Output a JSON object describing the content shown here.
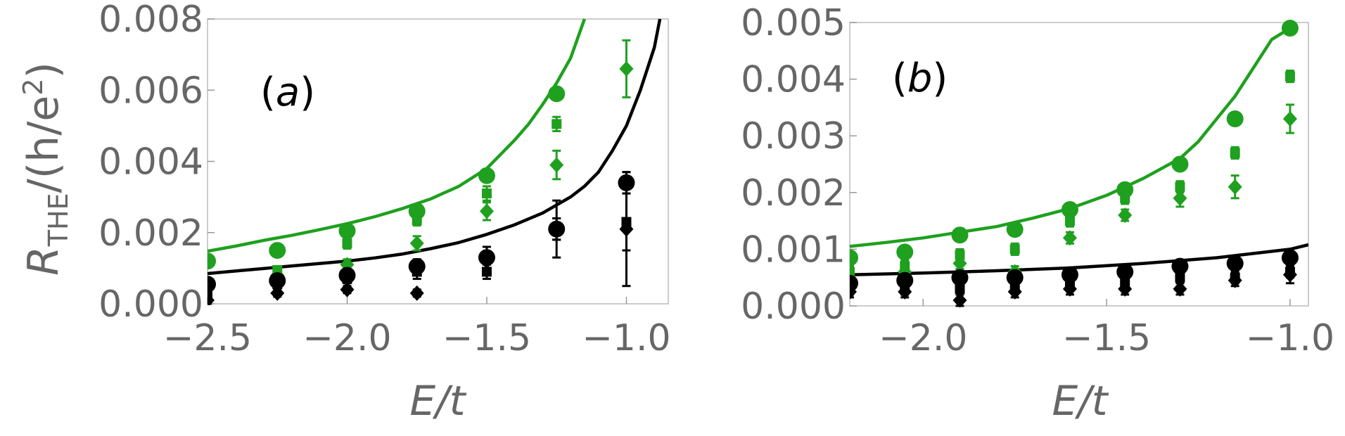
{
  "ylabel": {
    "main": "R",
    "sub": "THE",
    "rest": "/(h/e",
    "sup": "2",
    "close": ")"
  },
  "colors": {
    "green": "#1fa01f",
    "black": "#000000"
  },
  "chart_data": [
    {
      "type": "scatter",
      "panel_label": {
        "open": "(",
        "letter": "a",
        "close": ")"
      },
      "xlabel": "E/t",
      "xlim": [
        -2.5,
        -0.85
      ],
      "ylim": [
        0,
        0.008
      ],
      "xticks": [
        -2.5,
        -2.0,
        -1.5,
        -1.0
      ],
      "xtick_labels": [
        "−2.5",
        "−2.0",
        "−1.5",
        "−1.0"
      ],
      "yticks": [
        0,
        0.002,
        0.004,
        0.006,
        0.008
      ],
      "ytick_labels": [
        "0.000",
        "0.002",
        "0.004",
        "0.006",
        "0.008"
      ],
      "lines": [
        {
          "color": "green",
          "x": [
            -2.5,
            -2.4,
            -2.3,
            -2.2,
            -2.1,
            -2.0,
            -1.9,
            -1.8,
            -1.7,
            -1.6,
            -1.5,
            -1.45,
            -1.4,
            -1.35,
            -1.3,
            -1.25,
            -1.2,
            -1.15
          ],
          "y": [
            0.00148,
            0.00162,
            0.00178,
            0.00192,
            0.00208,
            0.00225,
            0.00245,
            0.00268,
            0.00295,
            0.0033,
            0.0038,
            0.0042,
            0.0046,
            0.00505,
            0.0056,
            0.0062,
            0.0069,
            0.008
          ]
        },
        {
          "color": "black",
          "x": [
            -2.5,
            -2.4,
            -2.3,
            -2.2,
            -2.1,
            -2.0,
            -1.9,
            -1.8,
            -1.7,
            -1.6,
            -1.5,
            -1.4,
            -1.3,
            -1.2,
            -1.15,
            -1.1,
            -1.05,
            -1.0,
            -0.95,
            -0.9,
            -0.88
          ],
          "y": [
            0.00085,
            0.00092,
            0.00099,
            0.00106,
            0.00113,
            0.0012,
            0.00129,
            0.0014,
            0.00155,
            0.00172,
            0.00195,
            0.00222,
            0.00255,
            0.003,
            0.0033,
            0.0037,
            0.0043,
            0.005,
            0.006,
            0.0072,
            0.008
          ]
        }
      ],
      "series": [
        {
          "color": "green",
          "marker": "circle",
          "x": [
            -2.5,
            -2.25,
            -2.0,
            -1.75,
            -1.5,
            -1.25
          ],
          "y": [
            0.0012,
            0.0015,
            0.00205,
            0.0026,
            0.0036,
            0.0059
          ],
          "err": [
            0,
            0,
            0,
            0,
            0,
            0
          ]
        },
        {
          "color": "green",
          "marker": "square",
          "x": [
            -2.5,
            -2.25,
            -2.0,
            -1.75,
            -1.5,
            -1.25
          ],
          "y": [
            0.0006,
            0.00095,
            0.0017,
            0.00235,
            0.0031,
            0.00505
          ],
          "err": [
            0.0001,
            0.0001,
            0.00015,
            0.00015,
            0.0002,
            0.0002
          ]
        },
        {
          "color": "green",
          "marker": "diamond",
          "x": [
            -2.5,
            -2.25,
            -2.0,
            -1.75,
            -1.5,
            -1.25,
            -1.0
          ],
          "y": [
            0.0005,
            0.0008,
            0.0011,
            0.0017,
            0.0026,
            0.0039,
            0.0066
          ],
          "err": [
            0.0001,
            0.0001,
            0.00015,
            0.0002,
            0.00025,
            0.0004,
            0.0008
          ]
        },
        {
          "color": "black",
          "marker": "circle",
          "x": [
            -2.5,
            -2.25,
            -2.0,
            -1.75,
            -1.5,
            -1.25,
            -1.0
          ],
          "y": [
            0.00055,
            0.00065,
            0.0008,
            0.00105,
            0.0013,
            0.0021,
            0.0034
          ],
          "err": [
            0.0001,
            0.0001,
            0.00015,
            0.0002,
            0.0003,
            0.0003,
            0.0003
          ]
        },
        {
          "color": "black",
          "marker": "square",
          "x": [
            -2.5,
            -2.25,
            -2.0,
            -1.75,
            -1.5,
            -1.25,
            -1.0
          ],
          "y": [
            0.00025,
            0.00055,
            0.0007,
            0.0009,
            0.0009,
            0.0021,
            0.0023
          ],
          "err": [
            0.0001,
            0.0001,
            0.00012,
            0.0002,
            0.0002,
            0.0003,
            0.0008
          ]
        },
        {
          "color": "black",
          "marker": "diamond",
          "x": [
            -2.5,
            -2.25,
            -2.0,
            -1.75,
            -1.5,
            -1.25,
            -1.0
          ],
          "y": [
            0.0001,
            0.0003,
            0.0004,
            0.0003,
            0.0012,
            0.0021,
            0.0021
          ],
          "err": [
            0.0001,
            0.0001,
            0.0001,
            0.0001,
            0.0002,
            0.0008,
            0.0016
          ]
        }
      ]
    },
    {
      "type": "scatter",
      "panel_label": {
        "open": "(",
        "letter": "b",
        "close": ")"
      },
      "xlabel": "E/t",
      "xlim": [
        -2.2,
        -0.95
      ],
      "ylim": [
        0,
        0.005
      ],
      "xticks": [
        -2.0,
        -1.5,
        -1.0
      ],
      "xtick_labels": [
        "−2.0",
        "−1.5",
        "−1.0"
      ],
      "yticks": [
        0,
        0.001,
        0.002,
        0.003,
        0.004,
        0.005
      ],
      "ytick_labels": [
        "0.000",
        "0.001",
        "0.002",
        "0.003",
        "0.004",
        "0.005"
      ],
      "lines": [
        {
          "color": "green",
          "x": [
            -2.2,
            -2.1,
            -2.0,
            -1.9,
            -1.8,
            -1.7,
            -1.6,
            -1.5,
            -1.4,
            -1.3,
            -1.25,
            -1.2,
            -1.15,
            -1.1,
            -1.05,
            -1.0
          ],
          "y": [
            0.00105,
            0.00112,
            0.0012,
            0.0013,
            0.0014,
            0.00155,
            0.00172,
            0.00195,
            0.00225,
            0.0026,
            0.0029,
            0.0033,
            0.0037,
            0.0042,
            0.0047,
            0.0049
          ]
        },
        {
          "color": "black",
          "x": [
            -2.2,
            -2.0,
            -1.8,
            -1.6,
            -1.4,
            -1.2,
            -1.0,
            -0.95
          ],
          "y": [
            0.00055,
            0.00058,
            0.00062,
            0.00067,
            0.00075,
            0.00085,
            0.001,
            0.00108
          ]
        }
      ],
      "series": [
        {
          "color": "green",
          "marker": "circle",
          "x": [
            -2.2,
            -2.05,
            -1.9,
            -1.75,
            -1.6,
            -1.45,
            -1.3,
            -1.15,
            -1.0
          ],
          "y": [
            0.00085,
            0.00095,
            0.00125,
            0.00135,
            0.0017,
            0.00205,
            0.0025,
            0.0033,
            0.0049
          ],
          "err": [
            0,
            0,
            0,
            0,
            0,
            0,
            0,
            0,
            0
          ]
        },
        {
          "color": "green",
          "marker": "square",
          "x": [
            -2.2,
            -2.05,
            -1.9,
            -1.75,
            -1.6,
            -1.45,
            -1.3,
            -1.15,
            -1.0
          ],
          "y": [
            0.0006,
            0.0007,
            0.0009,
            0.001,
            0.0015,
            0.0019,
            0.0021,
            0.0027,
            0.00405
          ],
          "err": [
            0.0001,
            0.0001,
            0.0001,
            0.0001,
            0.0001,
            0.0001,
            0.0001,
            0.0001,
            0.0001
          ]
        },
        {
          "color": "green",
          "marker": "diamond",
          "x": [
            -2.2,
            -2.05,
            -1.9,
            -1.75,
            -1.6,
            -1.45,
            -1.3,
            -1.15,
            -1.0
          ],
          "y": [
            0.0004,
            0.0006,
            0.00075,
            0.0006,
            0.0012,
            0.0016,
            0.0019,
            0.0021,
            0.0033
          ],
          "err": [
            0.0001,
            0.0001,
            0.0001,
            0.0001,
            0.0001,
            0.0001,
            0.00015,
            0.0002,
            0.00025
          ]
        },
        {
          "color": "black",
          "marker": "circle",
          "x": [
            -2.2,
            -2.05,
            -1.9,
            -1.75,
            -1.6,
            -1.45,
            -1.3,
            -1.15,
            -1.0
          ],
          "y": [
            0.0004,
            0.00045,
            0.0005,
            0.0005,
            0.00055,
            0.0006,
            0.0007,
            0.00075,
            0.00085
          ],
          "err": [
            0.0001,
            0.0001,
            0.0001,
            0.0001,
            0.0001,
            0.0001,
            0.0001,
            0.0001,
            0.0001
          ]
        },
        {
          "color": "black",
          "marker": "square",
          "x": [
            -2.2,
            -2.05,
            -1.9,
            -1.75,
            -1.6,
            -1.45,
            -1.3,
            -1.15,
            -1.0
          ],
          "y": [
            0.0003,
            0.0003,
            0.0003,
            0.00035,
            0.0004,
            0.0004,
            0.0005,
            0.0005,
            0.0006
          ],
          "err": [
            0.0001,
            0.0001,
            0.0001,
            0.0001,
            0.0001,
            0.0001,
            0.0001,
            0.0001,
            0.0001
          ]
        },
        {
          "color": "black",
          "marker": "diamond",
          "x": [
            -2.2,
            -2.05,
            -1.9,
            -1.75,
            -1.6,
            -1.45,
            -1.3,
            -1.15,
            -1.0
          ],
          "y": [
            0.00025,
            0.00025,
            0.0001,
            0.00025,
            0.0003,
            0.0003,
            0.0003,
            0.00045,
            0.00055
          ],
          "err": [
            0.0001,
            0.0001,
            0.0001,
            0.0001,
            0.0001,
            0.0001,
            0.0001,
            0.0001,
            0.00015
          ]
        }
      ]
    }
  ]
}
